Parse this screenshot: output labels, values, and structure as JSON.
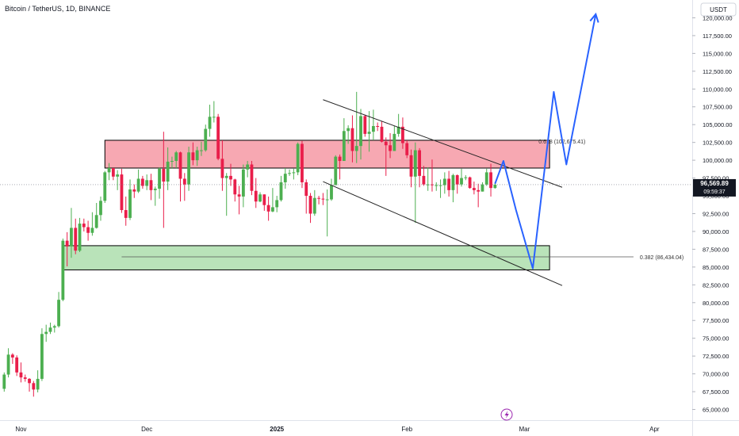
{
  "header": {
    "symbol_title": "Bitcoin / TetherUS, 1D, BINANCE"
  },
  "axis": {
    "currency": "USDT"
  },
  "price_tag": {
    "value": "96,569.89",
    "countdown": "09:59:37"
  },
  "icons": {
    "flash": "lightning-bolt-icon"
  },
  "colors": {
    "up": "#26a69a",
    "up_fill": "#4caf50",
    "down": "#e91e4a",
    "resistance_fill": "#f7a8b2",
    "support_fill": "#b9e3b9",
    "projection": "#2962ff",
    "channel": "#222222",
    "price_tag": "#131722"
  },
  "chart_data": {
    "type": "candlestick",
    "y_axis": {
      "min": 63500,
      "max": 122500,
      "ticks": [
        65000,
        67500,
        70000,
        72500,
        75000,
        77500,
        80000,
        82500,
        85000,
        87500,
        90000,
        92500,
        95000,
        97500,
        100000,
        102500,
        105000,
        107500,
        110000,
        112500,
        115000,
        117500,
        120000
      ],
      "tick_labels": [
        "65,000.00",
        "67,500.00",
        "70,000.00",
        "72,500.00",
        "75,000.00",
        "77,500.00",
        "80,000.00",
        "82,500.00",
        "85,000.00",
        "87,500.00",
        "90,000.00",
        "92,500.00",
        "95,000.00",
        "97,500.00",
        "100,000.00",
        "102,500.00",
        "105,000.00",
        "107,500.00",
        "110,000.00",
        "112,500.00",
        "115,000.00",
        "117,500.00",
        "120,000.00"
      ]
    },
    "x_axis": {
      "start": "2024-10-27",
      "end": "2025-04-10",
      "ticks": [
        {
          "date": "2024-11-01",
          "label": "Nov"
        },
        {
          "date": "2024-12-01",
          "label": "Dec"
        },
        {
          "date": "2025-01-01",
          "label": "2025"
        },
        {
          "date": "2025-02-01",
          "label": "Feb"
        },
        {
          "date": "2025-03-01",
          "label": "Mar"
        },
        {
          "date": "2025-04-01",
          "label": "Apr"
        }
      ]
    },
    "current_price": 96569.89,
    "candles": [
      {
        "date": "2024-10-28",
        "o": 67900,
        "h": 70200,
        "l": 67500,
        "c": 69900
      },
      {
        "date": "2024-10-29",
        "o": 69900,
        "h": 73600,
        "l": 69500,
        "c": 72700
      },
      {
        "date": "2024-10-30",
        "o": 72700,
        "h": 72900,
        "l": 71400,
        "c": 72300
      },
      {
        "date": "2024-10-31",
        "o": 72300,
        "h": 72600,
        "l": 69700,
        "c": 70200
      },
      {
        "date": "2024-11-01",
        "o": 70200,
        "h": 71600,
        "l": 68800,
        "c": 69500
      },
      {
        "date": "2024-11-02",
        "o": 69500,
        "h": 69900,
        "l": 68900,
        "c": 69300
      },
      {
        "date": "2024-11-03",
        "o": 69300,
        "h": 69400,
        "l": 67500,
        "c": 68700
      },
      {
        "date": "2024-11-04",
        "o": 68700,
        "h": 69000,
        "l": 66800,
        "c": 67800
      },
      {
        "date": "2024-11-05",
        "o": 67800,
        "h": 70500,
        "l": 67400,
        "c": 69300
      },
      {
        "date": "2024-11-06",
        "o": 69300,
        "h": 76400,
        "l": 69000,
        "c": 75600
      },
      {
        "date": "2024-11-07",
        "o": 75600,
        "h": 76900,
        "l": 74500,
        "c": 75900
      },
      {
        "date": "2024-11-08",
        "o": 75900,
        "h": 77200,
        "l": 75600,
        "c": 76500
      },
      {
        "date": "2024-11-09",
        "o": 76500,
        "h": 76900,
        "l": 75800,
        "c": 76700
      },
      {
        "date": "2024-11-10",
        "o": 76700,
        "h": 81500,
        "l": 76500,
        "c": 80400
      },
      {
        "date": "2024-11-11",
        "o": 80400,
        "h": 89000,
        "l": 80200,
        "c": 88700
      },
      {
        "date": "2024-11-12",
        "o": 88700,
        "h": 89900,
        "l": 85100,
        "c": 87900
      },
      {
        "date": "2024-11-13",
        "o": 87900,
        "h": 93300,
        "l": 86300,
        "c": 90500
      },
      {
        "date": "2024-11-14",
        "o": 90500,
        "h": 91800,
        "l": 86800,
        "c": 87300
      },
      {
        "date": "2024-11-15",
        "o": 87300,
        "h": 91900,
        "l": 87100,
        "c": 91100
      },
      {
        "date": "2024-11-16",
        "o": 91100,
        "h": 91800,
        "l": 90000,
        "c": 90600
      },
      {
        "date": "2024-11-17",
        "o": 90600,
        "h": 91500,
        "l": 88700,
        "c": 89800
      },
      {
        "date": "2024-11-18",
        "o": 89800,
        "h": 92700,
        "l": 89400,
        "c": 90500
      },
      {
        "date": "2024-11-19",
        "o": 90500,
        "h": 94000,
        "l": 90400,
        "c": 92300
      },
      {
        "date": "2024-11-20",
        "o": 92300,
        "h": 94900,
        "l": 91500,
        "c": 94300
      },
      {
        "date": "2024-11-21",
        "o": 94300,
        "h": 98500,
        "l": 94000,
        "c": 98300
      },
      {
        "date": "2024-11-22",
        "o": 98300,
        "h": 99600,
        "l": 97200,
        "c": 98900
      },
      {
        "date": "2024-11-23",
        "o": 98900,
        "h": 98900,
        "l": 97200,
        "c": 97700
      },
      {
        "date": "2024-11-24",
        "o": 97700,
        "h": 98600,
        "l": 95800,
        "c": 98000
      },
      {
        "date": "2024-11-25",
        "o": 98000,
        "h": 98800,
        "l": 92600,
        "c": 93000
      },
      {
        "date": "2024-11-26",
        "o": 93000,
        "h": 94900,
        "l": 90800,
        "c": 91900
      },
      {
        "date": "2024-11-27",
        "o": 91900,
        "h": 97300,
        "l": 91600,
        "c": 95900
      },
      {
        "date": "2024-11-28",
        "o": 95900,
        "h": 96600,
        "l": 94700,
        "c": 95600
      },
      {
        "date": "2024-11-29",
        "o": 95600,
        "h": 98700,
        "l": 95400,
        "c": 97400
      },
      {
        "date": "2024-11-30",
        "o": 97400,
        "h": 97800,
        "l": 96000,
        "c": 96400
      },
      {
        "date": "2024-12-01",
        "o": 96400,
        "h": 98000,
        "l": 95800,
        "c": 97200
      },
      {
        "date": "2024-12-02",
        "o": 97200,
        "h": 98100,
        "l": 94400,
        "c": 95800
      },
      {
        "date": "2024-12-03",
        "o": 95800,
        "h": 96300,
        "l": 93600,
        "c": 96000
      },
      {
        "date": "2024-12-04",
        "o": 96000,
        "h": 99000,
        "l": 94600,
        "c": 98800
      },
      {
        "date": "2024-12-05",
        "o": 98800,
        "h": 104000,
        "l": 90500,
        "c": 97000
      },
      {
        "date": "2024-12-06",
        "o": 97000,
        "h": 101800,
        "l": 95800,
        "c": 99800
      },
      {
        "date": "2024-12-07",
        "o": 99800,
        "h": 100500,
        "l": 98800,
        "c": 99900
      },
      {
        "date": "2024-12-08",
        "o": 99900,
        "h": 101300,
        "l": 98900,
        "c": 101100
      },
      {
        "date": "2024-12-09",
        "o": 101100,
        "h": 101200,
        "l": 94200,
        "c": 97400
      },
      {
        "date": "2024-12-10",
        "o": 97400,
        "h": 98200,
        "l": 94300,
        "c": 96600
      },
      {
        "date": "2024-12-11",
        "o": 96600,
        "h": 101900,
        "l": 95700,
        "c": 101100
      },
      {
        "date": "2024-12-12",
        "o": 101100,
        "h": 102500,
        "l": 99300,
        "c": 100000
      },
      {
        "date": "2024-12-13",
        "o": 100000,
        "h": 101900,
        "l": 99200,
        "c": 101400
      },
      {
        "date": "2024-12-14",
        "o": 101400,
        "h": 102600,
        "l": 100600,
        "c": 101400
      },
      {
        "date": "2024-12-15",
        "o": 101400,
        "h": 105000,
        "l": 101200,
        "c": 104400
      },
      {
        "date": "2024-12-16",
        "o": 104400,
        "h": 107800,
        "l": 103300,
        "c": 106100
      },
      {
        "date": "2024-12-17",
        "o": 106100,
        "h": 108300,
        "l": 105300,
        "c": 106100
      },
      {
        "date": "2024-12-18",
        "o": 106100,
        "h": 106500,
        "l": 100000,
        "c": 100200
      },
      {
        "date": "2024-12-19",
        "o": 100200,
        "h": 102800,
        "l": 95700,
        "c": 97500
      },
      {
        "date": "2024-12-20",
        "o": 97500,
        "h": 98200,
        "l": 92200,
        "c": 97800
      },
      {
        "date": "2024-12-21",
        "o": 97800,
        "h": 99500,
        "l": 96400,
        "c": 97300
      },
      {
        "date": "2024-12-22",
        "o": 97300,
        "h": 97400,
        "l": 94200,
        "c": 95200
      },
      {
        "date": "2024-12-23",
        "o": 95200,
        "h": 96400,
        "l": 92400,
        "c": 94900
      },
      {
        "date": "2024-12-24",
        "o": 94900,
        "h": 99400,
        "l": 93400,
        "c": 98700
      },
      {
        "date": "2024-12-25",
        "o": 98700,
        "h": 99900,
        "l": 97600,
        "c": 99400
      },
      {
        "date": "2024-12-26",
        "o": 99400,
        "h": 99900,
        "l": 95100,
        "c": 95700
      },
      {
        "date": "2024-12-27",
        "o": 95700,
        "h": 97500,
        "l": 93300,
        "c": 94200
      },
      {
        "date": "2024-12-28",
        "o": 94200,
        "h": 95500,
        "l": 94100,
        "c": 95200
      },
      {
        "date": "2024-12-29",
        "o": 95200,
        "h": 95200,
        "l": 92900,
        "c": 93700
      },
      {
        "date": "2024-12-30",
        "o": 93700,
        "h": 94900,
        "l": 91500,
        "c": 92800
      },
      {
        "date": "2024-12-31",
        "o": 92800,
        "h": 96100,
        "l": 92700,
        "c": 93400
      },
      {
        "date": "2025-01-01",
        "o": 93400,
        "h": 95000,
        "l": 92700,
        "c": 94400
      },
      {
        "date": "2025-01-02",
        "o": 94400,
        "h": 97800,
        "l": 94200,
        "c": 96900
      },
      {
        "date": "2025-01-03",
        "o": 96900,
        "h": 98900,
        "l": 96000,
        "c": 98100
      },
      {
        "date": "2025-01-04",
        "o": 98100,
        "h": 98700,
        "l": 97800,
        "c": 98200
      },
      {
        "date": "2025-01-05",
        "o": 98200,
        "h": 98800,
        "l": 97300,
        "c": 98300
      },
      {
        "date": "2025-01-06",
        "o": 98300,
        "h": 102500,
        "l": 97900,
        "c": 102300
      },
      {
        "date": "2025-01-07",
        "o": 102300,
        "h": 102700,
        "l": 96100,
        "c": 96900
      },
      {
        "date": "2025-01-08",
        "o": 96900,
        "h": 97300,
        "l": 92500,
        "c": 95000
      },
      {
        "date": "2025-01-09",
        "o": 95000,
        "h": 95400,
        "l": 91200,
        "c": 92500
      },
      {
        "date": "2025-01-10",
        "o": 92500,
        "h": 95800,
        "l": 92200,
        "c": 94700
      },
      {
        "date": "2025-01-11",
        "o": 94700,
        "h": 95000,
        "l": 93800,
        "c": 94600
      },
      {
        "date": "2025-01-12",
        "o": 94600,
        "h": 95400,
        "l": 93700,
        "c": 94500
      },
      {
        "date": "2025-01-13",
        "o": 94500,
        "h": 95900,
        "l": 89300,
        "c": 94500
      },
      {
        "date": "2025-01-14",
        "o": 94500,
        "h": 97400,
        "l": 94300,
        "c": 96500
      },
      {
        "date": "2025-01-15",
        "o": 96500,
        "h": 100700,
        "l": 96500,
        "c": 100500
      },
      {
        "date": "2025-01-16",
        "o": 100500,
        "h": 100800,
        "l": 97300,
        "c": 99900
      },
      {
        "date": "2025-01-17",
        "o": 99900,
        "h": 105900,
        "l": 99900,
        "c": 104100
      },
      {
        "date": "2025-01-18",
        "o": 104100,
        "h": 104900,
        "l": 102300,
        "c": 104500
      },
      {
        "date": "2025-01-19",
        "o": 104500,
        "h": 106300,
        "l": 99700,
        "c": 101300
      },
      {
        "date": "2025-01-20",
        "o": 101300,
        "h": 109600,
        "l": 99600,
        "c": 102000
      },
      {
        "date": "2025-01-21",
        "o": 102000,
        "h": 107200,
        "l": 100100,
        "c": 106200
      },
      {
        "date": "2025-01-22",
        "o": 106200,
        "h": 106400,
        "l": 103300,
        "c": 103700
      },
      {
        "date": "2025-01-23",
        "o": 103700,
        "h": 106900,
        "l": 101200,
        "c": 104000
      },
      {
        "date": "2025-01-24",
        "o": 104000,
        "h": 107100,
        "l": 102800,
        "c": 104800
      },
      {
        "date": "2025-01-25",
        "o": 104800,
        "h": 105300,
        "l": 104100,
        "c": 104700
      },
      {
        "date": "2025-01-26",
        "o": 104700,
        "h": 105500,
        "l": 102500,
        "c": 102600
      },
      {
        "date": "2025-01-27",
        "o": 102600,
        "h": 103200,
        "l": 97800,
        "c": 102100
      },
      {
        "date": "2025-01-28",
        "o": 102100,
        "h": 103800,
        "l": 100300,
        "c": 101300
      },
      {
        "date": "2025-01-29",
        "o": 101300,
        "h": 104800,
        "l": 101300,
        "c": 103700
      },
      {
        "date": "2025-01-30",
        "o": 103700,
        "h": 106500,
        "l": 103300,
        "c": 104700
      },
      {
        "date": "2025-01-31",
        "o": 104700,
        "h": 106000,
        "l": 101600,
        "c": 102400
      },
      {
        "date": "2025-02-01",
        "o": 102400,
        "h": 102800,
        "l": 100300,
        "c": 100700
      },
      {
        "date": "2025-02-02",
        "o": 100700,
        "h": 101500,
        "l": 96200,
        "c": 97700
      },
      {
        "date": "2025-02-03",
        "o": 97700,
        "h": 102500,
        "l": 91200,
        "c": 101400
      },
      {
        "date": "2025-02-04",
        "o": 101400,
        "h": 101700,
        "l": 96200,
        "c": 97800
      },
      {
        "date": "2025-02-05",
        "o": 97800,
        "h": 99200,
        "l": 96400,
        "c": 96600
      },
      {
        "date": "2025-02-06",
        "o": 96600,
        "h": 99000,
        "l": 95700,
        "c": 96600
      },
      {
        "date": "2025-02-07",
        "o": 96600,
        "h": 100100,
        "l": 95600,
        "c": 96500
      },
      {
        "date": "2025-02-08",
        "o": 96500,
        "h": 96900,
        "l": 95700,
        "c": 96500
      },
      {
        "date": "2025-02-09",
        "o": 96500,
        "h": 97300,
        "l": 94700,
        "c": 96500
      },
      {
        "date": "2025-02-10",
        "o": 96500,
        "h": 98300,
        "l": 95300,
        "c": 97400
      },
      {
        "date": "2025-02-11",
        "o": 97400,
        "h": 98500,
        "l": 94900,
        "c": 95800
      },
      {
        "date": "2025-02-12",
        "o": 95800,
        "h": 98100,
        "l": 94100,
        "c": 97900
      },
      {
        "date": "2025-02-13",
        "o": 97900,
        "h": 98000,
        "l": 95300,
        "c": 96600
      },
      {
        "date": "2025-02-14",
        "o": 96600,
        "h": 98800,
        "l": 96300,
        "c": 97500
      },
      {
        "date": "2025-02-15",
        "o": 97500,
        "h": 97900,
        "l": 97200,
        "c": 97600
      },
      {
        "date": "2025-02-16",
        "o": 97600,
        "h": 97700,
        "l": 96000,
        "c": 96100
      },
      {
        "date": "2025-02-17",
        "o": 96100,
        "h": 97000,
        "l": 95200,
        "c": 95800
      },
      {
        "date": "2025-02-18",
        "o": 95800,
        "h": 96700,
        "l": 93400,
        "c": 95600
      },
      {
        "date": "2025-02-19",
        "o": 95600,
        "h": 96900,
        "l": 95600,
        "c": 96600
      },
      {
        "date": "2025-02-20",
        "o": 96600,
        "h": 98800,
        "l": 96400,
        "c": 98300
      },
      {
        "date": "2025-02-21",
        "o": 98300,
        "h": 99500,
        "l": 94900,
        "c": 96100
      },
      {
        "date": "2025-02-22",
        "o": 96100,
        "h": 96900,
        "l": 96000,
        "c": 96570
      }
    ],
    "zones": [
      {
        "name": "resistance",
        "from": "2024-11-21",
        "to": "2025-03-07",
        "low": 98900,
        "high": 102800
      },
      {
        "name": "support",
        "from": "2024-11-11",
        "to": "2025-03-07",
        "low": 84600,
        "high": 88000
      }
    ],
    "channel_lines": [
      {
        "from": {
          "date": "2025-01-12",
          "price": 108500
        },
        "to": {
          "date": "2025-03-10",
          "price": 96200
        }
      },
      {
        "from": {
          "date": "2025-01-12",
          "price": 97000
        },
        "to": {
          "date": "2025-03-10",
          "price": 82400
        }
      }
    ],
    "fib_levels": [
      {
        "price": 86434.04,
        "label": "0.382 (86,434.04)",
        "from": "2024-11-25",
        "to": "2025-03-27"
      },
      {
        "price": 102675.41,
        "label": "0.618 (102,675.41)",
        "from": "2025-03-04",
        "to": "2025-03-04"
      }
    ],
    "projection_path": [
      {
        "date": "2025-02-22",
        "price": 96700
      },
      {
        "date": "2025-02-24",
        "price": 99900
      },
      {
        "date": "2025-02-27",
        "price": 93000
      },
      {
        "date": "2025-03-03",
        "price": 84800
      },
      {
        "date": "2025-03-08",
        "price": 109600
      },
      {
        "date": "2025-03-11",
        "price": 99400
      },
      {
        "date": "2025-03-18",
        "price": 120500
      }
    ]
  }
}
